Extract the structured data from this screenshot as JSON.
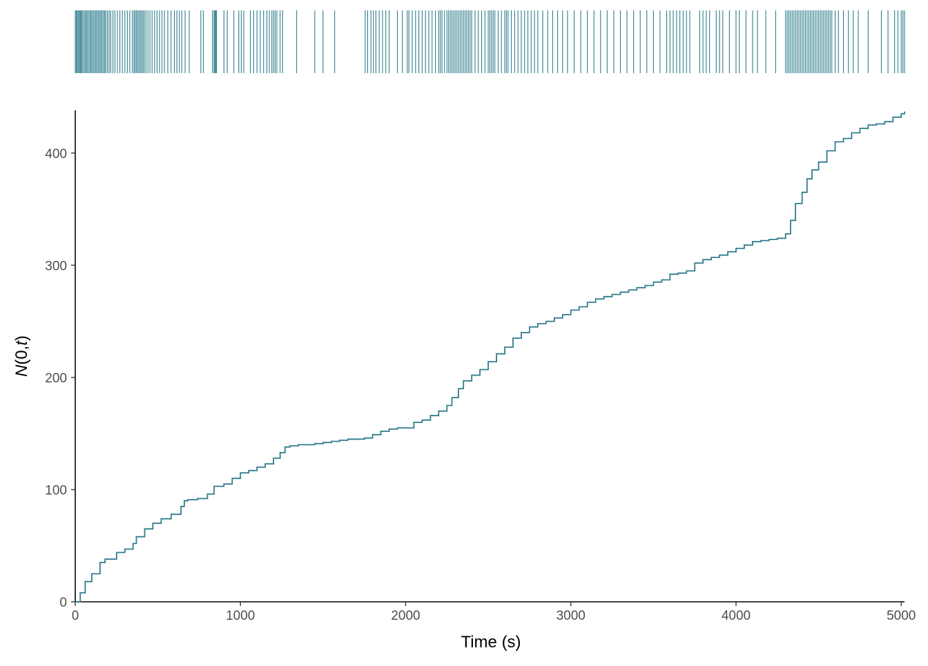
{
  "chart_data": {
    "type": "line",
    "subtype": "cumulative-step with rug of event times",
    "xlabel": "Time (s)",
    "ylabel": {
      "italic_1": "N",
      "plain_1": "(0,",
      "italic_2": "t",
      "plain_2": ")"
    },
    "xlim": [
      0,
      5020
    ],
    "ylim": [
      0,
      438
    ],
    "x_ticks": [
      0,
      1000,
      2000,
      3000,
      4000,
      5000
    ],
    "y_ticks": [
      0,
      100,
      200,
      300,
      400
    ],
    "grid": false,
    "legend": "none",
    "color": "#2e7d8c",
    "series": [
      {
        "x": [
          0,
          30,
          60,
          100,
          150,
          180,
          250,
          300,
          350,
          370,
          420,
          470,
          520,
          580,
          640,
          660,
          680,
          740,
          800,
          840,
          900,
          950,
          1000,
          1050,
          1100,
          1150,
          1200,
          1240,
          1270,
          1300,
          1350,
          1400,
          1450,
          1500,
          1550,
          1600,
          1650,
          1700,
          1750,
          1800,
          1850,
          1900,
          1950,
          2000,
          2050,
          2100,
          2150,
          2200,
          2250,
          2280,
          2320,
          2350,
          2400,
          2450,
          2500,
          2550,
          2600,
          2650,
          2700,
          2750,
          2800,
          2850,
          2900,
          2950,
          3000,
          3050,
          3100,
          3150,
          3200,
          3250,
          3300,
          3350,
          3400,
          3450,
          3500,
          3550,
          3600,
          3650,
          3700,
          3750,
          3800,
          3850,
          3900,
          3950,
          4000,
          4050,
          4100,
          4150,
          4200,
          4250,
          4280,
          4300,
          4330,
          4360,
          4400,
          4430,
          4460,
          4500,
          4550,
          4600,
          4650,
          4700,
          4750,
          4800,
          4850,
          4900,
          4950,
          5000,
          5020
        ],
        "y": [
          0,
          8,
          18,
          25,
          35,
          38,
          44,
          47,
          52,
          58,
          65,
          70,
          74,
          78,
          85,
          90,
          91,
          92,
          96,
          103,
          105,
          110,
          115,
          117,
          120,
          123,
          128,
          133,
          138,
          139,
          140,
          140,
          141,
          142,
          143,
          144,
          145,
          145,
          146,
          149,
          152,
          154,
          155,
          155,
          160,
          162,
          166,
          170,
          175,
          182,
          190,
          197,
          202,
          207,
          214,
          221,
          227,
          235,
          240,
          245,
          248,
          250,
          253,
          256,
          260,
          263,
          267,
          270,
          272,
          274,
          276,
          278,
          280,
          282,
          285,
          287,
          292,
          293,
          295,
          302,
          305,
          307,
          309,
          312,
          315,
          318,
          321,
          322,
          323,
          324,
          324,
          328,
          340,
          355,
          365,
          377,
          385,
          392,
          402,
          410,
          413,
          418,
          422,
          425,
          426,
          428,
          432,
          435,
          437
        ]
      }
    ],
    "rug_times": [
      0,
      6,
      12,
      18,
      25,
      30,
      36,
      42,
      50,
      58,
      65,
      72,
      80,
      88,
      95,
      102,
      110,
      118,
      125,
      132,
      140,
      148,
      155,
      162,
      170,
      178,
      185,
      195,
      205,
      215,
      228,
      240,
      255,
      270,
      285,
      300,
      315,
      330,
      345,
      355,
      362,
      370,
      378,
      386,
      394,
      402,
      410,
      418,
      428,
      440,
      452,
      465,
      480,
      495,
      510,
      525,
      540,
      560,
      580,
      600,
      615,
      630,
      645,
      665,
      690,
      760,
      775,
      830,
      840,
      845,
      850,
      855,
      900,
      920,
      960,
      990,
      1005,
      1020,
      1060,
      1080,
      1100,
      1120,
      1140,
      1160,
      1175,
      1190,
      1200,
      1210,
      1220,
      1240,
      1255,
      1340,
      1450,
      1500,
      1570,
      1755,
      1770,
      1790,
      1805,
      1820,
      1840,
      1860,
      1880,
      1900,
      1950,
      1980,
      2010,
      2020,
      2040,
      2060,
      2080,
      2100,
      2120,
      2140,
      2160,
      2180,
      2200,
      2210,
      2220,
      2235,
      2250,
      2260,
      2270,
      2280,
      2290,
      2300,
      2310,
      2320,
      2330,
      2340,
      2350,
      2360,
      2370,
      2380,
      2390,
      2400,
      2420,
      2440,
      2460,
      2480,
      2500,
      2510,
      2520,
      2530,
      2540,
      2560,
      2580,
      2600,
      2610,
      2620,
      2640,
      2660,
      2680,
      2700,
      2720,
      2740,
      2760,
      2780,
      2800,
      2830,
      2860,
      2890,
      2920,
      2950,
      2980,
      3020,
      3060,
      3100,
      3140,
      3180,
      3220,
      3260,
      3300,
      3340,
      3380,
      3420,
      3460,
      3500,
      3540,
      3580,
      3600,
      3620,
      3640,
      3660,
      3680,
      3700,
      3720,
      3780,
      3800,
      3820,
      3840,
      3880,
      3900,
      3920,
      3960,
      4000,
      4020,
      4060,
      4100,
      4130,
      4180,
      4240,
      4300,
      4310,
      4320,
      4330,
      4340,
      4350,
      4360,
      4370,
      4380,
      4390,
      4400,
      4410,
      4420,
      4430,
      4440,
      4450,
      4460,
      4470,
      4480,
      4490,
      4500,
      4510,
      4520,
      4530,
      4540,
      4550,
      4560,
      4570,
      4580,
      4600,
      4620,
      4650,
      4680,
      4710,
      4740,
      4800,
      4880,
      4920,
      4960,
      4980,
      5000,
      5010,
      5020
    ]
  }
}
